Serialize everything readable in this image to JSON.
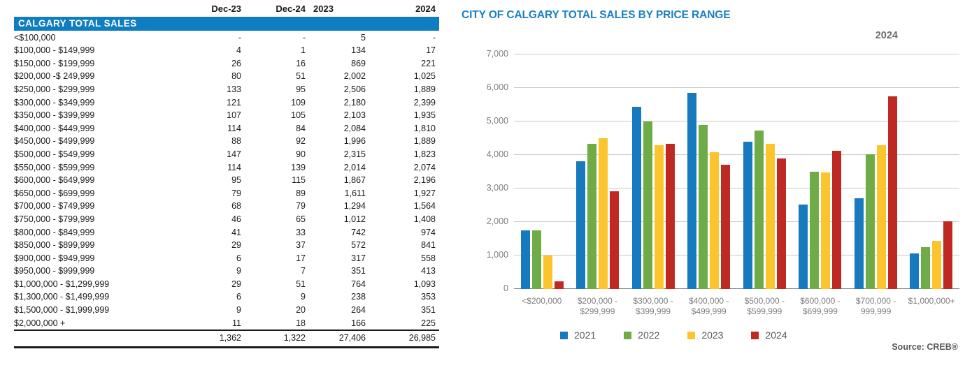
{
  "table": {
    "section_header": "CALGARY TOTAL SALES",
    "columns": [
      "Dec-23",
      "Dec-24",
      "2023",
      "2024"
    ],
    "rows": [
      {
        "label": "<$100,000",
        "values": [
          "-",
          "-",
          "5",
          "-"
        ]
      },
      {
        "label": "$100,000 - $149,999",
        "values": [
          "4",
          "1",
          "134",
          "17"
        ]
      },
      {
        "label": "$150,000 - $199,999",
        "values": [
          "26",
          "16",
          "869",
          "221"
        ]
      },
      {
        "label": "$200,000 -$ 249,999",
        "values": [
          "80",
          "51",
          "2,002",
          "1,025"
        ]
      },
      {
        "label": "$250,000 - $299,999",
        "values": [
          "133",
          "95",
          "2,506",
          "1,889"
        ]
      },
      {
        "label": "$300,000 - $349,999",
        "values": [
          "121",
          "109",
          "2,180",
          "2,399"
        ]
      },
      {
        "label": "$350,000 - $399,999",
        "values": [
          "107",
          "105",
          "2,103",
          "1,935"
        ]
      },
      {
        "label": "$400,000 - $449,999",
        "values": [
          "114",
          "84",
          "2,084",
          "1,810"
        ]
      },
      {
        "label": "$450,000 - $499,999",
        "values": [
          "88",
          "92",
          "1,996",
          "1,889"
        ]
      },
      {
        "label": "$500,000 - $549,999",
        "values": [
          "147",
          "90",
          "2,315",
          "1,823"
        ]
      },
      {
        "label": "$550,000 - $599,999",
        "values": [
          "114",
          "139",
          "2,014",
          "2,074"
        ]
      },
      {
        "label": "$600,000 - $649,999",
        "values": [
          "95",
          "115",
          "1,867",
          "2,196"
        ]
      },
      {
        "label": "$650,000 - $699,999",
        "values": [
          "79",
          "89",
          "1,611",
          "1,927"
        ]
      },
      {
        "label": "$700,000 - $749,999",
        "values": [
          "68",
          "79",
          "1,294",
          "1,564"
        ]
      },
      {
        "label": "$750,000 - $799,999",
        "values": [
          "46",
          "65",
          "1,012",
          "1,408"
        ]
      },
      {
        "label": "$800,000 - $849,999",
        "values": [
          "41",
          "33",
          "742",
          "974"
        ]
      },
      {
        "label": "$850,000 - $899,999",
        "values": [
          "29",
          "37",
          "572",
          "841"
        ]
      },
      {
        "label": "$900,000 - $949,999",
        "values": [
          "6",
          "17",
          "317",
          "558"
        ]
      },
      {
        "label": "$950,000 - $999,999",
        "values": [
          "9",
          "7",
          "351",
          "413"
        ]
      },
      {
        "label": "$1,000,000 - $1,299,999",
        "values": [
          "29",
          "51",
          "764",
          "1,093"
        ]
      },
      {
        "label": "$1,300,000 - $1,499,999",
        "values": [
          "6",
          "9",
          "238",
          "353"
        ]
      },
      {
        "label": "$1,500,000 - $1,999,999",
        "values": [
          "9",
          "20",
          "264",
          "351"
        ]
      },
      {
        "label": "$2,000,000 +",
        "values": [
          "11",
          "18",
          "166",
          "225"
        ]
      }
    ],
    "total": [
      "1,362",
      "1,322",
      "27,406",
      "26,985"
    ]
  },
  "chart": {
    "title": "CITY OF CALGARY TOTAL SALES BY PRICE RANGE",
    "annotation": "2024",
    "source": "Source: CREB®",
    "title_color": "#1b7fc0"
  },
  "chart_data": {
    "type": "bar",
    "title": "CITY OF CALGARY TOTAL SALES BY PRICE RANGE",
    "categories": [
      "<$200,000",
      "$200,000 - $299,999",
      "$300,000 - $399,999",
      "$400,000 - $499,999",
      "$500,000 - $599,999",
      "$600,000 - $699,999",
      "$700,000 - 999,999",
      "$1,000,000+"
    ],
    "categories_display": [
      [
        "<$200,000"
      ],
      [
        "$200,000 -",
        "$299,999"
      ],
      [
        "$300,000 -",
        "$399,999"
      ],
      [
        "$400,000 -",
        "$499,999"
      ],
      [
        "$500,000 -",
        "$599,999"
      ],
      [
        "$600,000 -",
        "$699,999"
      ],
      [
        "$700,000 -",
        "999,999"
      ],
      [
        "$1,000,000+"
      ]
    ],
    "series": [
      {
        "name": "2021",
        "color": "#1779be",
        "values": [
          1750,
          3820,
          5430,
          5860,
          4400,
          2520,
          2710,
          1070
        ]
      },
      {
        "name": "2022",
        "color": "#6fac47",
        "values": [
          1750,
          4340,
          5000,
          4890,
          4720,
          3510,
          4030,
          1250
        ]
      },
      {
        "name": "2023",
        "color": "#fcc52d",
        "values": [
          1008,
          4508,
          4283,
          4080,
          4329,
          3478,
          4288,
          1432
        ]
      },
      {
        "name": "2024",
        "color": "#be2a23",
        "values": [
          238,
          2914,
          4334,
          3699,
          3897,
          4123,
          5758,
          2022
        ]
      }
    ],
    "xlabel": "",
    "ylabel": "",
    "ylim": [
      0,
      7000
    ],
    "ytick_step": 1000,
    "yticks": [
      "0",
      "1,000",
      "2,000",
      "3,000",
      "4,000",
      "5,000",
      "6,000",
      "7,000"
    ],
    "grid": true,
    "legend_position": "bottom"
  }
}
